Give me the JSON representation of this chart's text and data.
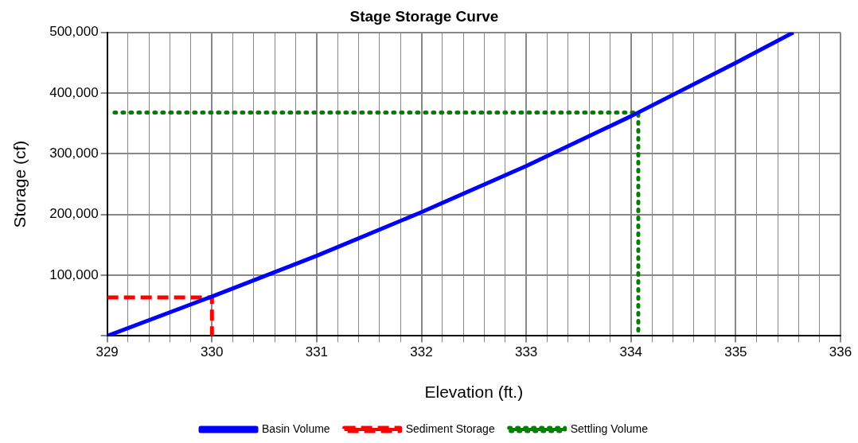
{
  "chart_data": {
    "type": "line",
    "title": "Stage Storage Curve",
    "xlabel": "Elevation (ft.)",
    "ylabel": "Storage (cf)",
    "xlim": [
      329,
      336
    ],
    "xticks": [
      329,
      {
        "value": 329.2,
        "label": null
      },
      {
        "value": 329.4,
        "label": null
      },
      {
        "value": 329.6,
        "label": null
      },
      {
        "value": 329.8,
        "label": null
      },
      330,
      {
        "value": 330.2,
        "label": null
      },
      {
        "value": 330.4,
        "label": null
      },
      {
        "value": 330.6,
        "label": null
      },
      {
        "value": 330.8,
        "label": null
      },
      331,
      {
        "value": 331.2,
        "label": null
      },
      {
        "value": 331.4,
        "label": null
      },
      {
        "value": 331.6,
        "label": null
      },
      {
        "value": 331.8,
        "label": null
      },
      332,
      {
        "value": 332.2,
        "label": null
      },
      {
        "value": 332.4,
        "label": null
      },
      {
        "value": 332.6,
        "label": null
      },
      {
        "value": 332.8,
        "label": null
      },
      333,
      {
        "value": 333.2,
        "label": null
      },
      {
        "value": 333.4,
        "label": null
      },
      {
        "value": 333.6,
        "label": null
      },
      {
        "value": 333.8,
        "label": null
      },
      334,
      {
        "value": 334.2,
        "label": null
      },
      {
        "value": 334.4,
        "label": null
      },
      {
        "value": 334.6,
        "label": null
      },
      {
        "value": 334.8,
        "label": null
      },
      335,
      {
        "value": 335.2,
        "label": null
      },
      {
        "value": 335.4,
        "label": null
      },
      {
        "value": 335.6,
        "label": null
      },
      {
        "value": 335.8,
        "label": null
      },
      336
    ],
    "ylim": [
      0,
      500000
    ],
    "yticks": [
      {
        "value": 0,
        "label": null
      },
      {
        "value": 100000,
        "label": "100,000"
      },
      {
        "value": 200000,
        "label": "200,000"
      },
      {
        "value": 300000,
        "label": "300,000"
      },
      {
        "value": 400000,
        "label": "400,000"
      },
      {
        "value": 500000,
        "label": "500,000"
      }
    ],
    "grid": true,
    "legend": "bottom",
    "marker": "none",
    "series": [
      {
        "name": "Basin Volume",
        "color": "#0000ff",
        "line_style": "solid",
        "x": [
          329,
          330,
          331,
          332,
          333,
          334,
          335,
          335.55
        ],
        "values": [
          0,
          65000,
          132000,
          204000,
          280000,
          362000,
          450000,
          500000
        ]
      },
      {
        "name": "Sediment Storage",
        "color": "#ff0000",
        "line_style": "dashed",
        "x": [
          329,
          330,
          330
        ],
        "values": [
          63500,
          63500,
          0
        ]
      },
      {
        "name": "Settling Volume",
        "color": "#008000",
        "line_style": "dotted",
        "x": [
          329.07,
          334.07,
          334.07
        ],
        "values": [
          368000,
          368000,
          0
        ]
      }
    ]
  }
}
